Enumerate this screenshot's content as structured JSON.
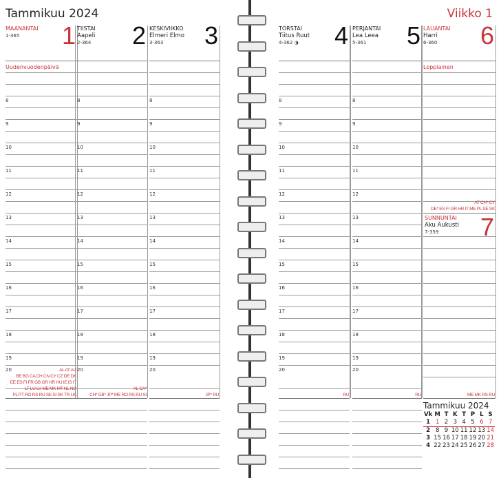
{
  "header": {
    "month_title": "Tammikuu 2024",
    "week_label": "Viikko 1"
  },
  "days": [
    {
      "name": "MAANANTAI",
      "names_of_day": "",
      "day_number": "1-365",
      "date": "1",
      "holiday": "Uudenvuodenpäivä",
      "red": true,
      "country_codes": [
        "AL AT AU",
        "BE BG CA CH CN CY CZ DE DK",
        "EE ES FI FR GB GR HR HU IE IS IT",
        "LT LU LV ME MK MT NL NO",
        "PL PT RO RS RU SE SI SK TR US"
      ]
    },
    {
      "name": "TIISTAI",
      "names_of_day": "Aapeli",
      "day_number": "2-364",
      "date": "2",
      "holiday": "",
      "red": false,
      "country_codes": [
        "AL CA*",
        "CH* GB* JP* ME RO RS RU SI"
      ]
    },
    {
      "name": "KESKIVIIKKO",
      "names_of_day": "Elmeri Elmo",
      "day_number": "3-363",
      "date": "3",
      "holiday": "",
      "red": false,
      "country_codes": [
        "JP* RU"
      ]
    },
    {
      "name": "TORSTAI",
      "names_of_day": "Tiitus Ruut",
      "day_number": "4-362 ◑",
      "date": "4",
      "holiday": "",
      "red": false,
      "country_codes": [
        "RU"
      ]
    },
    {
      "name": "PERJANTAI",
      "names_of_day": "Lea Leea",
      "day_number": "5-361",
      "date": "5",
      "holiday": "",
      "red": false,
      "country_codes": [
        "RU"
      ]
    },
    {
      "name": "LAUANTAI",
      "names_of_day": "Harri",
      "day_number": "6-360",
      "date": "6",
      "holiday": "Loppiainen",
      "red": true,
      "country_codes": [
        "AT CH* CY",
        "DE* ES FI GR HR IT ME PL SE SK"
      ]
    },
    {
      "name": "SUNNUNTAI",
      "names_of_day": "Aku Aukusti",
      "day_number": "7-359",
      "date": "7",
      "holiday": "",
      "red": true,
      "country_codes": [
        "ME MK RS RU"
      ]
    }
  ],
  "hours": [
    "8",
    "9",
    "10",
    "11",
    "12",
    "13",
    "14",
    "15",
    "16",
    "17",
    "18",
    "19",
    "20"
  ],
  "mini_calendar": {
    "title": "Tammikuu 2024",
    "headers": [
      "Vk",
      "M",
      "T",
      "K",
      "T",
      "P",
      "L",
      "S"
    ],
    "rows": [
      [
        "1",
        "1",
        "2",
        "3",
        "4",
        "5",
        "6",
        "7"
      ],
      [
        "2",
        "8",
        "9",
        "10",
        "11",
        "12",
        "13",
        "14"
      ],
      [
        "3",
        "15",
        "16",
        "17",
        "18",
        "19",
        "20",
        "21"
      ],
      [
        "4",
        "22",
        "23",
        "24",
        "25",
        "26",
        "27",
        "28"
      ]
    ]
  },
  "colors": {
    "accent_red": "#c8343c",
    "line": "#9a9a9a"
  }
}
